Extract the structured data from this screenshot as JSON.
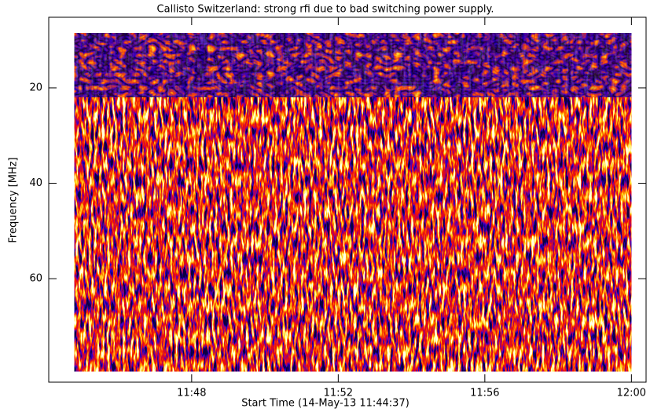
{
  "chart_data": {
    "type": "spectrogram",
    "title": "Callisto Switzerland: strong rfi due to bad switching power supply.",
    "xlabel": "Start Time (14-May-13 11:44:37)",
    "ylabel": "Frequency [MHz]",
    "xlim": [
      44.1,
      60.4
    ],
    "xticks": [
      {
        "value": 48,
        "label": "11:48"
      },
      {
        "value": 52,
        "label": "11:52"
      },
      {
        "value": 56,
        "label": "11:56"
      },
      {
        "value": 60,
        "label": "12:00"
      }
    ],
    "ylim": [
      5.2,
      81.7
    ],
    "yticks": [
      20,
      40,
      60
    ],
    "y_inverted": true,
    "x_extent": [
      44.8,
      60
    ],
    "y_extent": [
      8.5,
      79.4
    ]
  }
}
